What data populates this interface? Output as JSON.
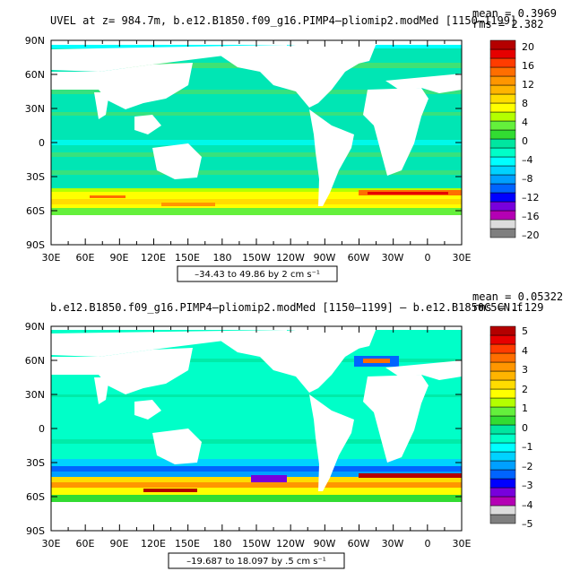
{
  "panels": [
    {
      "title": "UVEL at z= 984.7m, b.e12.B1850.f09_g16.PIMP4–pliomip2.modMed [1150–1199]",
      "mean_text": "mean = 0.3969",
      "rms_text": "rms = 2.382",
      "range_text": "–34.43 to 49.86 by 2 cm s⁻¹",
      "colorbar_labels": [
        "20",
        "16",
        "12",
        "8",
        "4",
        "0",
        "–4",
        "–8",
        "–12",
        "–16",
        "–20"
      ]
    },
    {
      "title": "b.e12.B1850.f09_g16.PIMP4–pliomip2.modMed [1150–1199] – b.e12.B1850C5CN.f",
      "mean_text": "mean = 0.05322",
      "rms_text": "rms = 1.129",
      "range_text": "–19.687 to 18.097 by .5 cm s⁻¹",
      "colorbar_labels": [
        "5",
        "4",
        "3",
        "2",
        "1",
        "0",
        "–1",
        "–2",
        "–3",
        "–4",
        "–5"
      ]
    }
  ],
  "axes": {
    "lat_labels": [
      "90N",
      "60N",
      "30N",
      "0",
      "30S",
      "60S",
      "90S"
    ],
    "lon_labels": [
      "30E",
      "60E",
      "90E",
      "120E",
      "150E",
      "180",
      "150W",
      "120W",
      "90W",
      "60W",
      "30W",
      "0",
      "30E"
    ]
  },
  "colorbar_colors": [
    "#7f7f7f",
    "#dcdcdc",
    "#b400b4",
    "#7800dc",
    "#0000ff",
    "#0064ff",
    "#00a0ff",
    "#00d2ff",
    "#00ffff",
    "#00ffc8",
    "#00e6a0",
    "#32dc32",
    "#64f03c",
    "#b4ff00",
    "#ffff00",
    "#ffdc00",
    "#ffb400",
    "#ff9600",
    "#ff6e00",
    "#ff3c00",
    "#e60000",
    "#b40000"
  ],
  "colors": {
    "land": "#ffffff",
    "ocean_base": "#00e6b4"
  }
}
